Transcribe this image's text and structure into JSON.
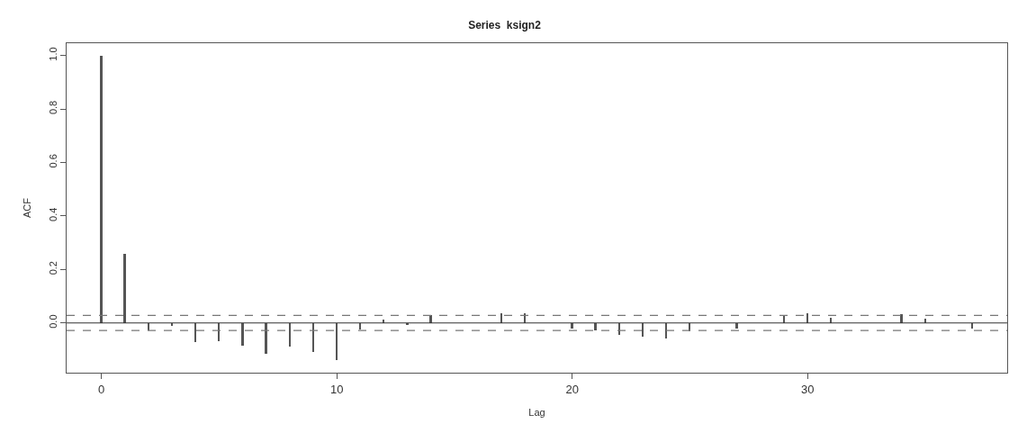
{
  "chart_data": {
    "type": "bar",
    "title": "Series  ksign2",
    "xlabel": "Lag",
    "ylabel": "ACF",
    "x": [
      0,
      1,
      2,
      3,
      4,
      5,
      6,
      7,
      8,
      9,
      10,
      11,
      12,
      13,
      14,
      15,
      16,
      17,
      18,
      19,
      20,
      21,
      22,
      23,
      24,
      25,
      26,
      27,
      28,
      29,
      30,
      31,
      32,
      33,
      34,
      35,
      36,
      37
    ],
    "values": [
      1.0,
      0.257,
      -0.029,
      -0.011,
      -0.072,
      -0.067,
      -0.084,
      -0.114,
      -0.089,
      -0.11,
      -0.14,
      -0.024,
      0.012,
      -0.007,
      0.029,
      null,
      null,
      0.037,
      0.035,
      null,
      -0.02,
      -0.029,
      -0.044,
      -0.05,
      -0.057,
      -0.03,
      null,
      -0.02,
      null,
      0.029,
      0.036,
      0.018,
      null,
      null,
      0.033,
      0.017,
      null,
      -0.02
    ],
    "color": "#555555",
    "xlim": [
      -1.48,
      38.48
    ],
    "ylim": [
      -0.186,
      1.046
    ],
    "xticks": [
      0,
      10,
      20,
      30
    ],
    "yticks": [
      {
        "value": 0,
        "label": "0.0"
      },
      0.2,
      0.4,
      0.6,
      0.8,
      {
        "value": 1,
        "label": "1.0"
      }
    ],
    "ref_lines": [
      {
        "axis": "y",
        "value": 0,
        "color": "#333333",
        "line_style": "solid"
      },
      {
        "axis": "y",
        "value": 0.028,
        "color": "#777777",
        "line_style": "dashed"
      },
      {
        "axis": "y",
        "value": -0.028,
        "color": "#777777",
        "line_style": "dashed"
      }
    ]
  }
}
